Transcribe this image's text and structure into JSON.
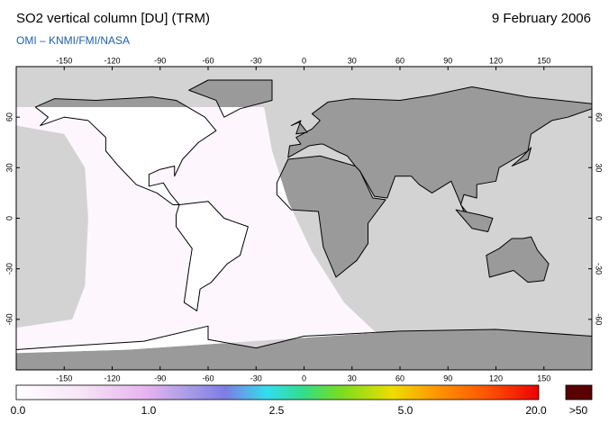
{
  "header": {
    "title": "SO2 vertical column [DU] (TRM)",
    "date": "9 February 2006",
    "credit": "OMI  –  KNMI/FMI/NASA"
  },
  "map": {
    "lon_ticks": [
      -150,
      -120,
      -90,
      -60,
      -30,
      0,
      30,
      60,
      90,
      120,
      150
    ],
    "lat_ticks": [
      60,
      30,
      0,
      -30,
      -60
    ]
  },
  "colorbar": {
    "labels": [
      "0.0",
      "1.0",
      "2.5",
      "5.0",
      "20.0"
    ],
    "overflow": ">50"
  }
}
